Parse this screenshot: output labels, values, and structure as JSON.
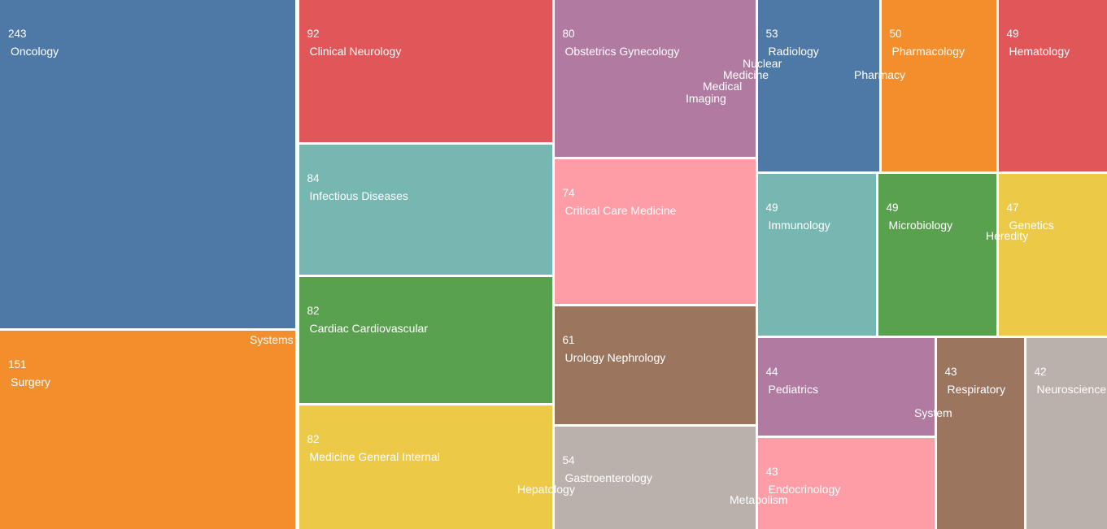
{
  "chart_data": {
    "type": "treemap",
    "items": [
      {
        "name": "Oncology",
        "value": 243,
        "color": "#4e79a7"
      },
      {
        "name": "Surgery",
        "value": 151,
        "color": "#f28e2b"
      },
      {
        "name": "Clinical Neurology",
        "value": 92,
        "color": "#e15759"
      },
      {
        "name": "Infectious Diseases",
        "value": 84,
        "color": "#76b7b2"
      },
      {
        "name": "Cardiac Cardiovascular",
        "value": 82,
        "color": "#59a14f"
      },
      {
        "name": "Medicine General Internal",
        "value": 82,
        "color": "#edc948"
      },
      {
        "name": "Obstetrics Gynecology",
        "value": 80,
        "color": "#b07aa1"
      },
      {
        "name": "Critical Care Medicine",
        "value": 74,
        "color": "#ff9da7"
      },
      {
        "name": "Urology Nephrology",
        "value": 61,
        "color": "#9c755f"
      },
      {
        "name": "Gastroenterology",
        "value": 54,
        "color": "#bab0ac"
      },
      {
        "name": "Radiology",
        "value": 53,
        "color": "#4e79a7"
      },
      {
        "name": "Pharmacology",
        "value": 50,
        "color": "#f28e2b"
      },
      {
        "name": "Hematology",
        "value": 49,
        "color": "#e15759"
      },
      {
        "name": "Immunology",
        "value": 49,
        "color": "#76b7b2"
      },
      {
        "name": "Microbiology",
        "value": 49,
        "color": "#59a14f"
      },
      {
        "name": "Genetics",
        "value": 47,
        "color": "#edc948"
      },
      {
        "name": "Pediatrics",
        "value": 44,
        "color": "#b07aa1"
      },
      {
        "name": "Endocrinology",
        "value": 43,
        "color": "#ff9da7"
      },
      {
        "name": "Respiratory",
        "value": 43,
        "color": "#9c755f"
      },
      {
        "name": "Neuroscience",
        "value": 42,
        "color": "#bab0ac"
      }
    ],
    "overflow_words": [
      "Systems",
      "Nuclear",
      "Medicine",
      "Medical",
      "Imaging",
      "Pharmacy",
      "Heredity",
      "Hepatology",
      "Metabolism",
      "System"
    ]
  }
}
